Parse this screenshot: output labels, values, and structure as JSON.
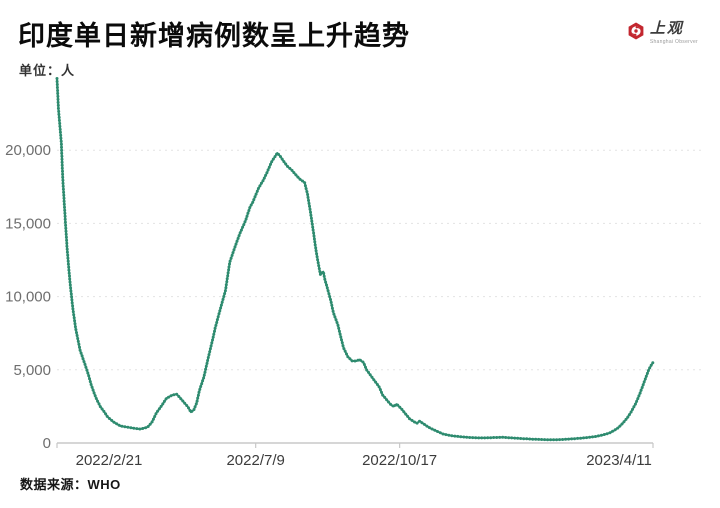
{
  "header": {
    "title": "印度单日新增病例数呈上升趋势",
    "unit_label": "单位：人",
    "logo": {
      "name": "上观",
      "subtitle": "Shanghai Observer",
      "brand_color": "#c3272f"
    }
  },
  "footer": {
    "source_label": "数据来源：WHO"
  },
  "chart_data": {
    "type": "line",
    "title": "印度单日新增病例数呈上升趋势",
    "ylabel": "人",
    "xlabel": "",
    "line_color": "#2e8b6f",
    "grid": "dashed-horizontal",
    "grid_color": "#e3e3e3",
    "axis_color": "#c8c8c8",
    "ytick_color": "#6e6e6e",
    "xtick_color": "#3c3c3c",
    "ylim": [
      0,
      25000
    ],
    "yticks": [
      0,
      5000,
      10000,
      15000,
      20000
    ],
    "ytick_labels": [
      "0",
      "5,000",
      "10,000",
      "15,000",
      "20,000"
    ],
    "x_start_date": "2022/2/21",
    "x_end_date": "2023/4/11",
    "x_total_days": 414,
    "x_tick_labels": [
      "2022/2/21",
      "2022/7/9",
      "2022/10/17",
      "2023/4/11"
    ],
    "x_tick_days": [
      0,
      138,
      238,
      414
    ],
    "series": [
      {
        "name": "单日新增病例数",
        "points": [
          [
            0,
            24900
          ],
          [
            1,
            22850
          ],
          [
            3,
            20500
          ],
          [
            4,
            18050
          ],
          [
            6,
            14850
          ],
          [
            7,
            13300
          ],
          [
            9,
            11000
          ],
          [
            11,
            9200
          ],
          [
            13,
            7800
          ],
          [
            16,
            6350
          ],
          [
            19,
            5500
          ],
          [
            22,
            4600
          ],
          [
            24,
            3900
          ],
          [
            27,
            3100
          ],
          [
            30,
            2500
          ],
          [
            33,
            2100
          ],
          [
            35,
            1800
          ],
          [
            39,
            1450
          ],
          [
            44,
            1160
          ],
          [
            49,
            1080
          ],
          [
            54,
            1000
          ],
          [
            58,
            950
          ],
          [
            63,
            1090
          ],
          [
            66,
            1430
          ],
          [
            69,
            2050
          ],
          [
            73,
            2590
          ],
          [
            76,
            3050
          ],
          [
            80,
            3270
          ],
          [
            83,
            3340
          ],
          [
            85,
            3140
          ],
          [
            88,
            2800
          ],
          [
            91,
            2460
          ],
          [
            93,
            2110
          ],
          [
            95,
            2250
          ],
          [
            97,
            2730
          ],
          [
            99,
            3610
          ],
          [
            102,
            4500
          ],
          [
            105,
            5800
          ],
          [
            108,
            7020
          ],
          [
            110,
            7900
          ],
          [
            113,
            9000
          ],
          [
            117,
            10400
          ],
          [
            120,
            12350
          ],
          [
            124,
            13500
          ],
          [
            127,
            14300
          ],
          [
            131,
            15200
          ],
          [
            134,
            16100
          ],
          [
            136,
            16450
          ],
          [
            140,
            17400
          ],
          [
            143,
            17900
          ],
          [
            146,
            18500
          ],
          [
            149,
            19200
          ],
          [
            153,
            19800
          ],
          [
            155,
            19600
          ],
          [
            157,
            19300
          ],
          [
            160,
            18900
          ],
          [
            163,
            18650
          ],
          [
            166,
            18300
          ],
          [
            169,
            18000
          ],
          [
            172,
            17800
          ],
          [
            174,
            17000
          ],
          [
            176,
            15800
          ],
          [
            178,
            14500
          ],
          [
            180,
            13100
          ],
          [
            182,
            12000
          ],
          [
            183,
            11500
          ],
          [
            185,
            11700
          ],
          [
            186,
            11200
          ],
          [
            188,
            10500
          ],
          [
            190,
            9800
          ],
          [
            192,
            8900
          ],
          [
            195,
            8100
          ],
          [
            197,
            7300
          ],
          [
            199,
            6500
          ],
          [
            202,
            5900
          ],
          [
            205,
            5600
          ],
          [
            208,
            5600
          ],
          [
            210,
            5700
          ],
          [
            213,
            5500
          ],
          [
            215,
            5000
          ],
          [
            218,
            4600
          ],
          [
            221,
            4200
          ],
          [
            224,
            3800
          ],
          [
            226,
            3300
          ],
          [
            229,
            2950
          ],
          [
            232,
            2600
          ],
          [
            234,
            2500
          ],
          [
            236,
            2650
          ],
          [
            238,
            2450
          ],
          [
            240,
            2250
          ],
          [
            242,
            2000
          ],
          [
            245,
            1650
          ],
          [
            248,
            1450
          ],
          [
            250,
            1350
          ],
          [
            252,
            1500
          ],
          [
            254,
            1350
          ],
          [
            257,
            1150
          ],
          [
            260,
            980
          ],
          [
            264,
            800
          ],
          [
            268,
            620
          ],
          [
            274,
            500
          ],
          [
            280,
            430
          ],
          [
            286,
            380
          ],
          [
            292,
            350
          ],
          [
            298,
            350
          ],
          [
            304,
            375
          ],
          [
            310,
            390
          ],
          [
            316,
            345
          ],
          [
            322,
            305
          ],
          [
            328,
            275
          ],
          [
            334,
            245
          ],
          [
            340,
            225
          ],
          [
            346,
            225
          ],
          [
            352,
            245
          ],
          [
            358,
            285
          ],
          [
            364,
            330
          ],
          [
            369,
            380
          ],
          [
            374,
            440
          ],
          [
            378,
            520
          ],
          [
            381,
            600
          ],
          [
            384,
            700
          ],
          [
            387,
            850
          ],
          [
            390,
            1050
          ],
          [
            393,
            1350
          ],
          [
            396,
            1700
          ],
          [
            399,
            2150
          ],
          [
            402,
            2700
          ],
          [
            405,
            3400
          ],
          [
            408,
            4200
          ],
          [
            411,
            5000
          ],
          [
            413,
            5350
          ],
          [
            414,
            5500
          ]
        ]
      }
    ]
  }
}
